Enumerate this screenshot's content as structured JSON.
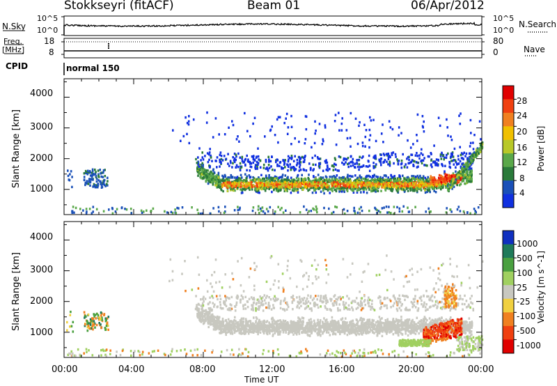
{
  "header": {
    "station": "Stokkseyri (fitACF)",
    "beam": "Beam 01",
    "date": "06/Apr/2012"
  },
  "strips": {
    "nsky_label": "N.Sky",
    "nsky_ticks": [
      "10^5",
      "10^0"
    ],
    "nsearch_label": "N.Search",
    "nsearch_ticks": [
      "10^5",
      "10^0"
    ],
    "freq_label": "Freq.",
    "freq_unit": "[MHz]",
    "freq_ticks": [
      "18",
      "8"
    ],
    "nave_label": "Nave",
    "nave_ticks": [
      "80",
      "0"
    ],
    "cpid_label": "CPID",
    "cpid_value": "normal 150"
  },
  "power_panel": {
    "ylabel": "Slant Range [km]",
    "yticks": [
      "4000",
      "3000",
      "2000",
      "1000"
    ],
    "colorbar_label": "Power [dB]",
    "colorbar_ticks": [
      "28",
      "24",
      "20",
      "16",
      "12",
      "8",
      "4"
    ],
    "colors": [
      "#1030e0",
      "#1a50b8",
      "#2a7a3a",
      "#5aa84a",
      "#b8c828",
      "#f0c000",
      "#f08020",
      "#f04010",
      "#e00000"
    ]
  },
  "velocity_panel": {
    "ylabel": "Slant Range [km]",
    "yticks": [
      "4000",
      "3000",
      "2000",
      "1000"
    ],
    "colorbar_label": "Velocity [m s^-1]",
    "colorbar_ticks": [
      "1000",
      "500",
      "100",
      "25",
      "-25",
      "-100",
      "-500",
      "-1000"
    ],
    "colors": [
      "#1030c0",
      "#1f7a5a",
      "#4aa040",
      "#a0d060",
      "#c8c8c0",
      "#f0d040",
      "#f08020",
      "#f04010",
      "#e00000"
    ]
  },
  "xaxis": {
    "label": "Time UT",
    "ticks": [
      "00:00",
      "04:00",
      "08:00",
      "12:00",
      "16:00",
      "20:00",
      "00:00"
    ]
  },
  "chart_data": {
    "type": "heatmap",
    "title": "Stokkseyri (fitACF)",
    "x_range_hours": [
      0,
      24
    ],
    "y_range_km": [
      180,
      4600
    ],
    "xlabel": "Time UT",
    "ylabel": "Slant Range [km]",
    "power_band": [
      {
        "t": 8.0,
        "r": 1500,
        "db": 12
      },
      {
        "t": 9.0,
        "r": 1200,
        "db": 18
      },
      {
        "t": 10.0,
        "r": 1150,
        "db": 22
      },
      {
        "t": 12.0,
        "r": 1100,
        "db": 24
      },
      {
        "t": 14.0,
        "r": 1100,
        "db": 20
      },
      {
        "t": 16.0,
        "r": 1120,
        "db": 18
      },
      {
        "t": 18.0,
        "r": 1150,
        "db": 16
      },
      {
        "t": 20.0,
        "r": 1200,
        "db": 18
      },
      {
        "t": 22.0,
        "r": 1400,
        "db": 24
      }
    ],
    "velocity_band": [
      {
        "t": 1.5,
        "r": 1350,
        "v": -100
      },
      {
        "t": 8.0,
        "r": 1500,
        "v": 0
      },
      {
        "t": 12.0,
        "r": 1200,
        "v": 0
      },
      {
        "t": 16.0,
        "r": 1200,
        "v": 0
      },
      {
        "t": 20.5,
        "r": 700,
        "v": 100
      },
      {
        "t": 21.5,
        "r": 800,
        "v": -500
      },
      {
        "t": 22.0,
        "r": 1100,
        "v": -1000
      }
    ]
  }
}
